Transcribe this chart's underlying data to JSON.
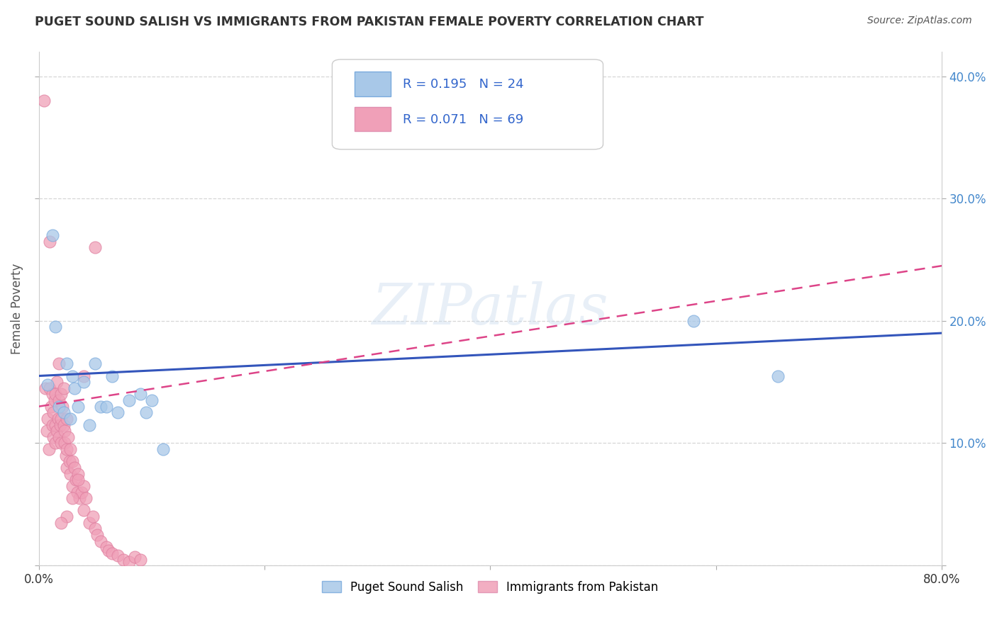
{
  "title": "PUGET SOUND SALISH VS IMMIGRANTS FROM PAKISTAN FEMALE POVERTY CORRELATION CHART",
  "source": "Source: ZipAtlas.com",
  "ylabel": "Female Poverty",
  "xlim": [
    0.0,
    0.8
  ],
  "ylim": [
    0.0,
    0.42
  ],
  "yticks": [
    0.0,
    0.1,
    0.2,
    0.3,
    0.4
  ],
  "right_ytick_labels": [
    "",
    "10.0%",
    "20.0%",
    "30.0%",
    "40.0%"
  ],
  "xtick_left_label": "0.0%",
  "xtick_right_label": "80.0%",
  "background_color": "#ffffff",
  "grid_color": "#cccccc",
  "blue_color": "#a8c8e8",
  "pink_color": "#f0a0b8",
  "blue_line_color": "#3355bb",
  "pink_line_color": "#dd4488",
  "legend_label1": "Puget Sound Salish",
  "legend_label2": "Immigrants from Pakistan",
  "watermark": "ZIPatlas",
  "blue_line_start_y": 0.155,
  "blue_line_end_y": 0.19,
  "pink_line_start_y": 0.13,
  "pink_line_end_y": 0.245,
  "blue_scatter_x": [
    0.008,
    0.012,
    0.015,
    0.018,
    0.022,
    0.025,
    0.028,
    0.03,
    0.032,
    0.035,
    0.04,
    0.045,
    0.05,
    0.055,
    0.06,
    0.065,
    0.07,
    0.08,
    0.09,
    0.095,
    0.1,
    0.11,
    0.58,
    0.655
  ],
  "blue_scatter_y": [
    0.148,
    0.27,
    0.195,
    0.13,
    0.125,
    0.165,
    0.12,
    0.155,
    0.145,
    0.13,
    0.15,
    0.115,
    0.165,
    0.13,
    0.13,
    0.155,
    0.125,
    0.135,
    0.14,
    0.125,
    0.135,
    0.095,
    0.2,
    0.155
  ],
  "pink_scatter_x": [
    0.005,
    0.006,
    0.007,
    0.008,
    0.009,
    0.01,
    0.01,
    0.011,
    0.012,
    0.012,
    0.013,
    0.013,
    0.014,
    0.015,
    0.015,
    0.015,
    0.016,
    0.016,
    0.017,
    0.018,
    0.018,
    0.018,
    0.019,
    0.02,
    0.02,
    0.02,
    0.021,
    0.022,
    0.022,
    0.023,
    0.023,
    0.024,
    0.025,
    0.025,
    0.025,
    0.026,
    0.027,
    0.028,
    0.028,
    0.03,
    0.03,
    0.032,
    0.033,
    0.034,
    0.035,
    0.036,
    0.038,
    0.04,
    0.04,
    0.042,
    0.045,
    0.048,
    0.05,
    0.052,
    0.055,
    0.06,
    0.062,
    0.065,
    0.07,
    0.075,
    0.08,
    0.085,
    0.09,
    0.05,
    0.04,
    0.035,
    0.03,
    0.025,
    0.02
  ],
  "pink_scatter_y": [
    0.38,
    0.145,
    0.11,
    0.12,
    0.095,
    0.265,
    0.145,
    0.13,
    0.14,
    0.115,
    0.105,
    0.125,
    0.135,
    0.14,
    0.115,
    0.1,
    0.11,
    0.15,
    0.12,
    0.165,
    0.105,
    0.135,
    0.115,
    0.14,
    0.1,
    0.12,
    0.13,
    0.115,
    0.145,
    0.11,
    0.1,
    0.09,
    0.08,
    0.095,
    0.12,
    0.105,
    0.085,
    0.095,
    0.075,
    0.085,
    0.065,
    0.08,
    0.07,
    0.06,
    0.075,
    0.055,
    0.06,
    0.045,
    0.065,
    0.055,
    0.035,
    0.04,
    0.03,
    0.025,
    0.02,
    0.015,
    0.012,
    0.01,
    0.008,
    0.005,
    0.003,
    0.007,
    0.005,
    0.26,
    0.155,
    0.07,
    0.055,
    0.04,
    0.035
  ]
}
